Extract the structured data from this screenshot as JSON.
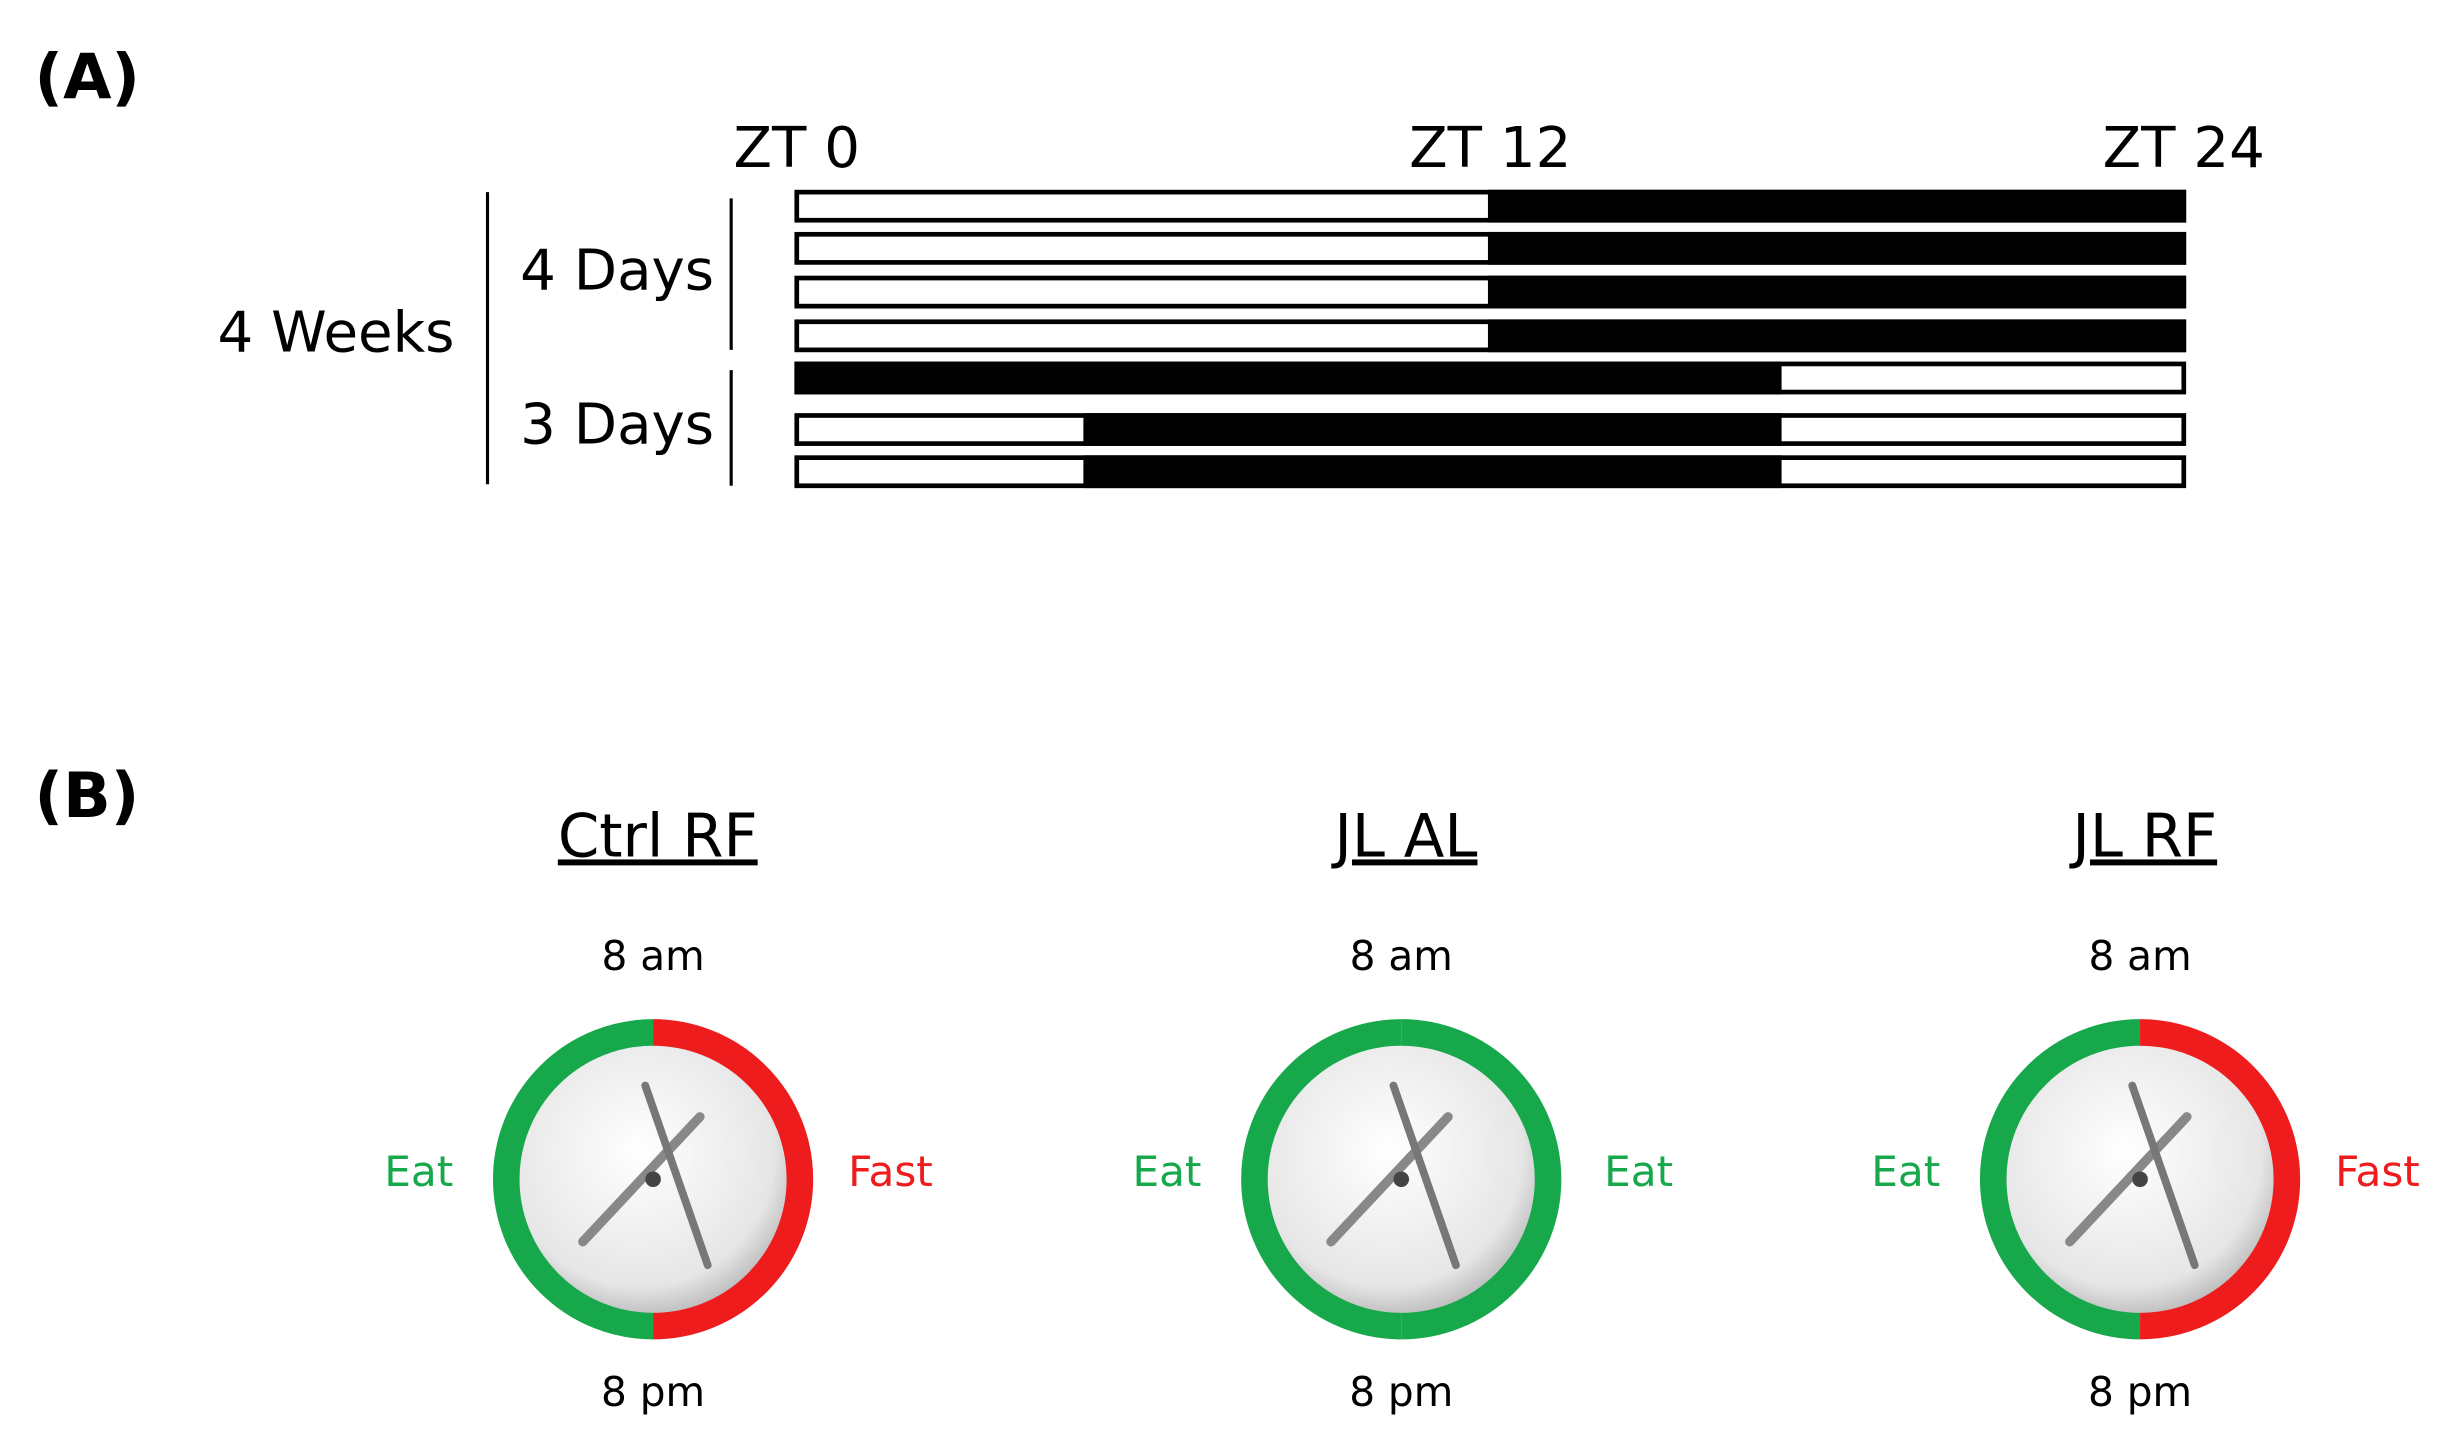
{
  "panel_a": {
    "label": "(A)",
    "zt_ticks": [
      {
        "value": 0,
        "label": "ZT 0"
      },
      {
        "value": 12,
        "label": "ZT 12"
      },
      {
        "value": 24,
        "label": "ZT 24"
      }
    ],
    "zt_range": [
      0,
      24
    ],
    "weeks_label": "4 Weeks",
    "groups": [
      {
        "label": "4 Days",
        "rows": [
          0,
          1,
          2,
          3
        ]
      },
      {
        "label": "3 Days",
        "rows": [
          4,
          5,
          6
        ]
      }
    ],
    "rows": [
      {
        "dark": [
          12,
          24
        ]
      },
      {
        "dark": [
          12,
          24
        ]
      },
      {
        "dark": [
          12,
          24
        ]
      },
      {
        "dark": [
          12,
          24
        ]
      },
      {
        "dark": [
          0,
          17
        ]
      },
      {
        "dark": [
          5,
          17
        ]
      },
      {
        "dark": [
          5,
          17
        ]
      }
    ]
  },
  "panel_b": {
    "label": "(B)",
    "clocks": [
      {
        "title": "Ctrl RF",
        "top": "8 am",
        "bottom": "8 pm",
        "left": {
          "label": "Eat",
          "color": "#16a84a"
        },
        "right": {
          "label": "Fast",
          "color": "#ee1c1c"
        }
      },
      {
        "title": "JL AL",
        "top": "8 am",
        "bottom": "8 pm",
        "left": {
          "label": "Eat",
          "color": "#16a84a"
        },
        "right": {
          "label": "Eat",
          "color": "#16a84a"
        }
      },
      {
        "title": "JL RF",
        "top": "8 am",
        "bottom": "8 pm",
        "left": {
          "label": "Eat",
          "color": "#16a84a"
        },
        "right": {
          "label": "Fast",
          "color": "#ee1c1c"
        }
      }
    ]
  }
}
